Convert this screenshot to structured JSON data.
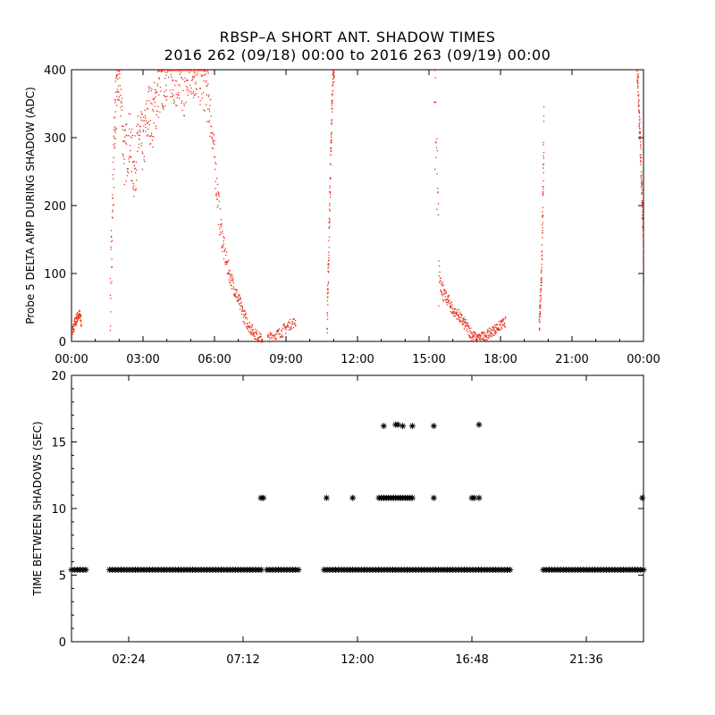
{
  "title": "RBSP–A SHORT ANT. SHADOW TIMES",
  "subtitle": "2016 262 (09/18) 00:00 to 2016 263 (09/19) 00:00",
  "chart_data": [
    {
      "type": "scatter",
      "ylabel": "Probe 5 DELTA AMP DURING SHADOW (ADC)",
      "xlabel": "",
      "x_unit": "hours",
      "xlim": [
        0,
        24
      ],
      "ylim": [
        0,
        400
      ],
      "xticks": [
        0,
        3,
        6,
        9,
        12,
        15,
        18,
        21,
        24
      ],
      "xtick_labels": [
        "00:00",
        "03:00",
        "06:00",
        "09:00",
        "12:00",
        "15:00",
        "18:00",
        "21:00",
        "00:00"
      ],
      "yticks": [
        0,
        100,
        200,
        300,
        400
      ],
      "ytick_labels": [
        "0",
        "100",
        "200",
        "300",
        "400"
      ],
      "color": "#e8301c",
      "series": [
        {
          "x": [
            0.0,
            0.1,
            0.2,
            0.3,
            0.4
          ],
          "y": [
            15,
            25,
            35,
            40,
            30
          ]
        },
        {
          "x": [
            1.6,
            1.7,
            1.8,
            1.9,
            2.0,
            2.2,
            2.4,
            2.6,
            2.8,
            3.0,
            3.2,
            3.4,
            3.6,
            3.8,
            4.0,
            4.2,
            4.4,
            4.6,
            4.8,
            5.0,
            5.2,
            5.4,
            5.6,
            5.8,
            6.0,
            6.2,
            6.4,
            6.6,
            6.8,
            7.0,
            7.2,
            7.4,
            7.6,
            7.8,
            8.0
          ],
          "y": [
            40,
            200,
            330,
            380,
            390,
            270,
            300,
            250,
            300,
            290,
            340,
            330,
            370,
            380,
            400,
            400,
            390,
            370,
            380,
            400,
            400,
            390,
            380,
            340,
            260,
            180,
            130,
            100,
            80,
            60,
            40,
            25,
            15,
            8,
            3
          ]
        },
        {
          "x": [
            8.2,
            8.5,
            8.8,
            9.1,
            9.4
          ],
          "y": [
            5,
            10,
            15,
            25,
            30
          ]
        },
        {
          "x": [
            10.7,
            10.75,
            10.8,
            10.85,
            10.9,
            10.95,
            11.0
          ],
          "y": [
            30,
            100,
            180,
            260,
            340,
            400,
            390
          ]
        },
        {
          "x": [
            15.2,
            15.4,
            15.6,
            15.8,
            16.0,
            16.2,
            16.4,
            16.6,
            16.8,
            17.0,
            17.2,
            17.4,
            17.6,
            17.8,
            18.0,
            18.2
          ],
          "y": [
            380,
            100,
            70,
            60,
            45,
            40,
            30,
            20,
            10,
            5,
            8,
            10,
            15,
            20,
            25,
            30
          ]
        },
        {
          "x": [
            19.6,
            19.65,
            19.7,
            19.75,
            19.8
          ],
          "y": [
            20,
            60,
            110,
            200,
            320
          ]
        },
        {
          "x": [
            23.7,
            23.75,
            23.8,
            23.85,
            23.9,
            23.95,
            24.0
          ],
          "y": [
            400,
            380,
            330,
            280,
            230,
            170,
            100
          ]
        }
      ]
    },
    {
      "type": "scatter",
      "ylabel": "TIME BETWEEN SHADOWS (SEC)",
      "xlabel": "",
      "x_unit": "hours",
      "xlim": [
        0,
        24
      ],
      "ylim": [
        0,
        20
      ],
      "xticks": [
        2.4,
        7.2,
        12.0,
        16.8,
        21.6
      ],
      "xtick_labels": [
        "02:24",
        "07:12",
        "12:00",
        "16:48",
        "21:36"
      ],
      "yticks": [
        0,
        5,
        10,
        15,
        20
      ],
      "ytick_labels": [
        "0",
        "5",
        "10",
        "15",
        "20"
      ],
      "marker": "asterisk",
      "color": "#000000",
      "segments_at_5_4": [
        [
          0.0,
          0.6
        ],
        [
          1.6,
          8.0
        ],
        [
          8.2,
          9.6
        ],
        [
          10.6,
          18.5
        ],
        [
          19.8,
          24.0
        ]
      ],
      "points": [
        {
          "x": 7.95,
          "y": 10.8
        },
        {
          "x": 8.05,
          "y": 10.8
        },
        {
          "x": 10.7,
          "y": 10.8
        },
        {
          "x": 11.8,
          "y": 10.8
        },
        {
          "x": 12.9,
          "y": 10.8
        },
        {
          "x": 13.0,
          "y": 10.8
        },
        {
          "x": 13.1,
          "y": 10.8
        },
        {
          "x": 13.2,
          "y": 10.8
        },
        {
          "x": 13.3,
          "y": 10.8
        },
        {
          "x": 13.4,
          "y": 10.8
        },
        {
          "x": 13.5,
          "y": 10.8
        },
        {
          "x": 13.6,
          "y": 10.8
        },
        {
          "x": 13.7,
          "y": 10.8
        },
        {
          "x": 13.8,
          "y": 10.8
        },
        {
          "x": 13.9,
          "y": 10.8
        },
        {
          "x": 14.0,
          "y": 10.8
        },
        {
          "x": 14.1,
          "y": 10.8
        },
        {
          "x": 14.2,
          "y": 10.8
        },
        {
          "x": 14.3,
          "y": 10.8
        },
        {
          "x": 15.2,
          "y": 10.8
        },
        {
          "x": 16.8,
          "y": 10.8
        },
        {
          "x": 16.9,
          "y": 10.8
        },
        {
          "x": 17.1,
          "y": 10.8
        },
        {
          "x": 13.1,
          "y": 16.2
        },
        {
          "x": 13.6,
          "y": 16.3
        },
        {
          "x": 13.7,
          "y": 16.3
        },
        {
          "x": 13.9,
          "y": 16.2
        },
        {
          "x": 14.3,
          "y": 16.2
        },
        {
          "x": 15.2,
          "y": 16.2
        },
        {
          "x": 17.1,
          "y": 16.3
        },
        {
          "x": 24.0,
          "y": 10.8
        }
      ]
    }
  ]
}
